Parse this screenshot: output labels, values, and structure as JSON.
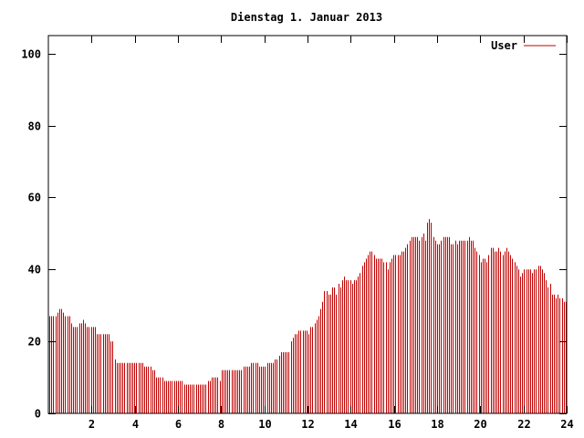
{
  "chart_data": {
    "type": "bar",
    "title": "Dienstag 1. Januar 2013",
    "xlabel": "",
    "ylabel": "",
    "xlim": [
      0,
      24
    ],
    "ylim": [
      0,
      105
    ],
    "x_ticks": [
      2,
      4,
      6,
      8,
      10,
      12,
      14,
      16,
      18,
      20,
      22,
      24
    ],
    "y_ticks": [
      0,
      20,
      40,
      60,
      80,
      100
    ],
    "grid": false,
    "legend": "top-right",
    "colors": {
      "series": "#c00000",
      "axis": "#000000",
      "background": "#ffffff"
    },
    "series": [
      {
        "name": "User",
        "values": [
          27,
          27,
          27,
          27,
          28,
          29,
          29,
          28,
          27,
          27,
          27,
          25,
          24,
          24,
          24,
          25,
          25,
          26,
          25,
          24,
          24,
          24,
          24,
          24,
          22,
          22,
          22,
          22,
          22,
          22,
          22,
          20,
          20,
          15,
          14,
          14,
          14,
          14,
          14,
          14,
          14,
          14,
          14,
          14,
          14,
          14,
          14,
          14,
          13,
          13,
          13,
          13,
          12,
          12,
          10,
          10,
          10,
          10,
          9,
          9,
          9,
          9,
          9,
          9,
          9,
          9,
          9,
          9,
          8,
          8,
          8,
          8,
          8,
          8,
          8,
          8,
          8,
          8,
          8,
          8,
          9,
          9,
          10,
          10,
          10,
          10,
          9,
          12,
          12,
          12,
          12,
          12,
          12,
          12,
          12,
          12,
          12,
          12,
          13,
          13,
          13,
          13,
          14,
          14,
          14,
          14,
          13,
          13,
          13,
          13,
          14,
          14,
          14,
          14,
          15,
          15,
          16,
          17,
          17,
          17,
          17,
          17,
          20,
          21,
          22,
          22,
          23,
          23,
          23,
          23,
          23,
          22,
          24,
          24,
          25,
          26,
          27,
          29,
          31,
          34,
          34,
          33,
          33,
          35,
          35,
          33,
          36,
          35,
          37,
          38,
          37,
          37,
          37,
          36,
          37,
          37,
          38,
          39,
          41,
          42,
          43,
          44,
          45,
          45,
          44,
          43,
          43,
          43,
          43,
          42,
          42,
          40,
          42,
          43,
          44,
          44,
          44,
          44,
          45,
          45,
          46,
          47,
          48,
          49,
          49,
          49,
          49,
          48,
          49,
          50,
          48,
          53,
          54,
          53,
          49,
          48,
          47,
          47,
          48,
          49,
          49,
          49,
          49,
          47,
          47,
          48,
          47,
          48,
          48,
          48,
          48,
          48,
          49,
          48,
          48,
          46,
          45,
          44,
          42,
          43,
          43,
          42,
          44,
          46,
          46,
          45,
          45,
          46,
          45,
          44,
          45,
          46,
          45,
          44,
          43,
          42,
          41,
          40,
          38,
          39,
          40,
          40,
          40,
          40,
          39,
          40,
          40,
          41,
          41,
          40,
          39,
          37,
          35,
          36,
          33,
          33,
          32,
          33,
          32,
          32,
          31,
          31
        ]
      }
    ]
  }
}
